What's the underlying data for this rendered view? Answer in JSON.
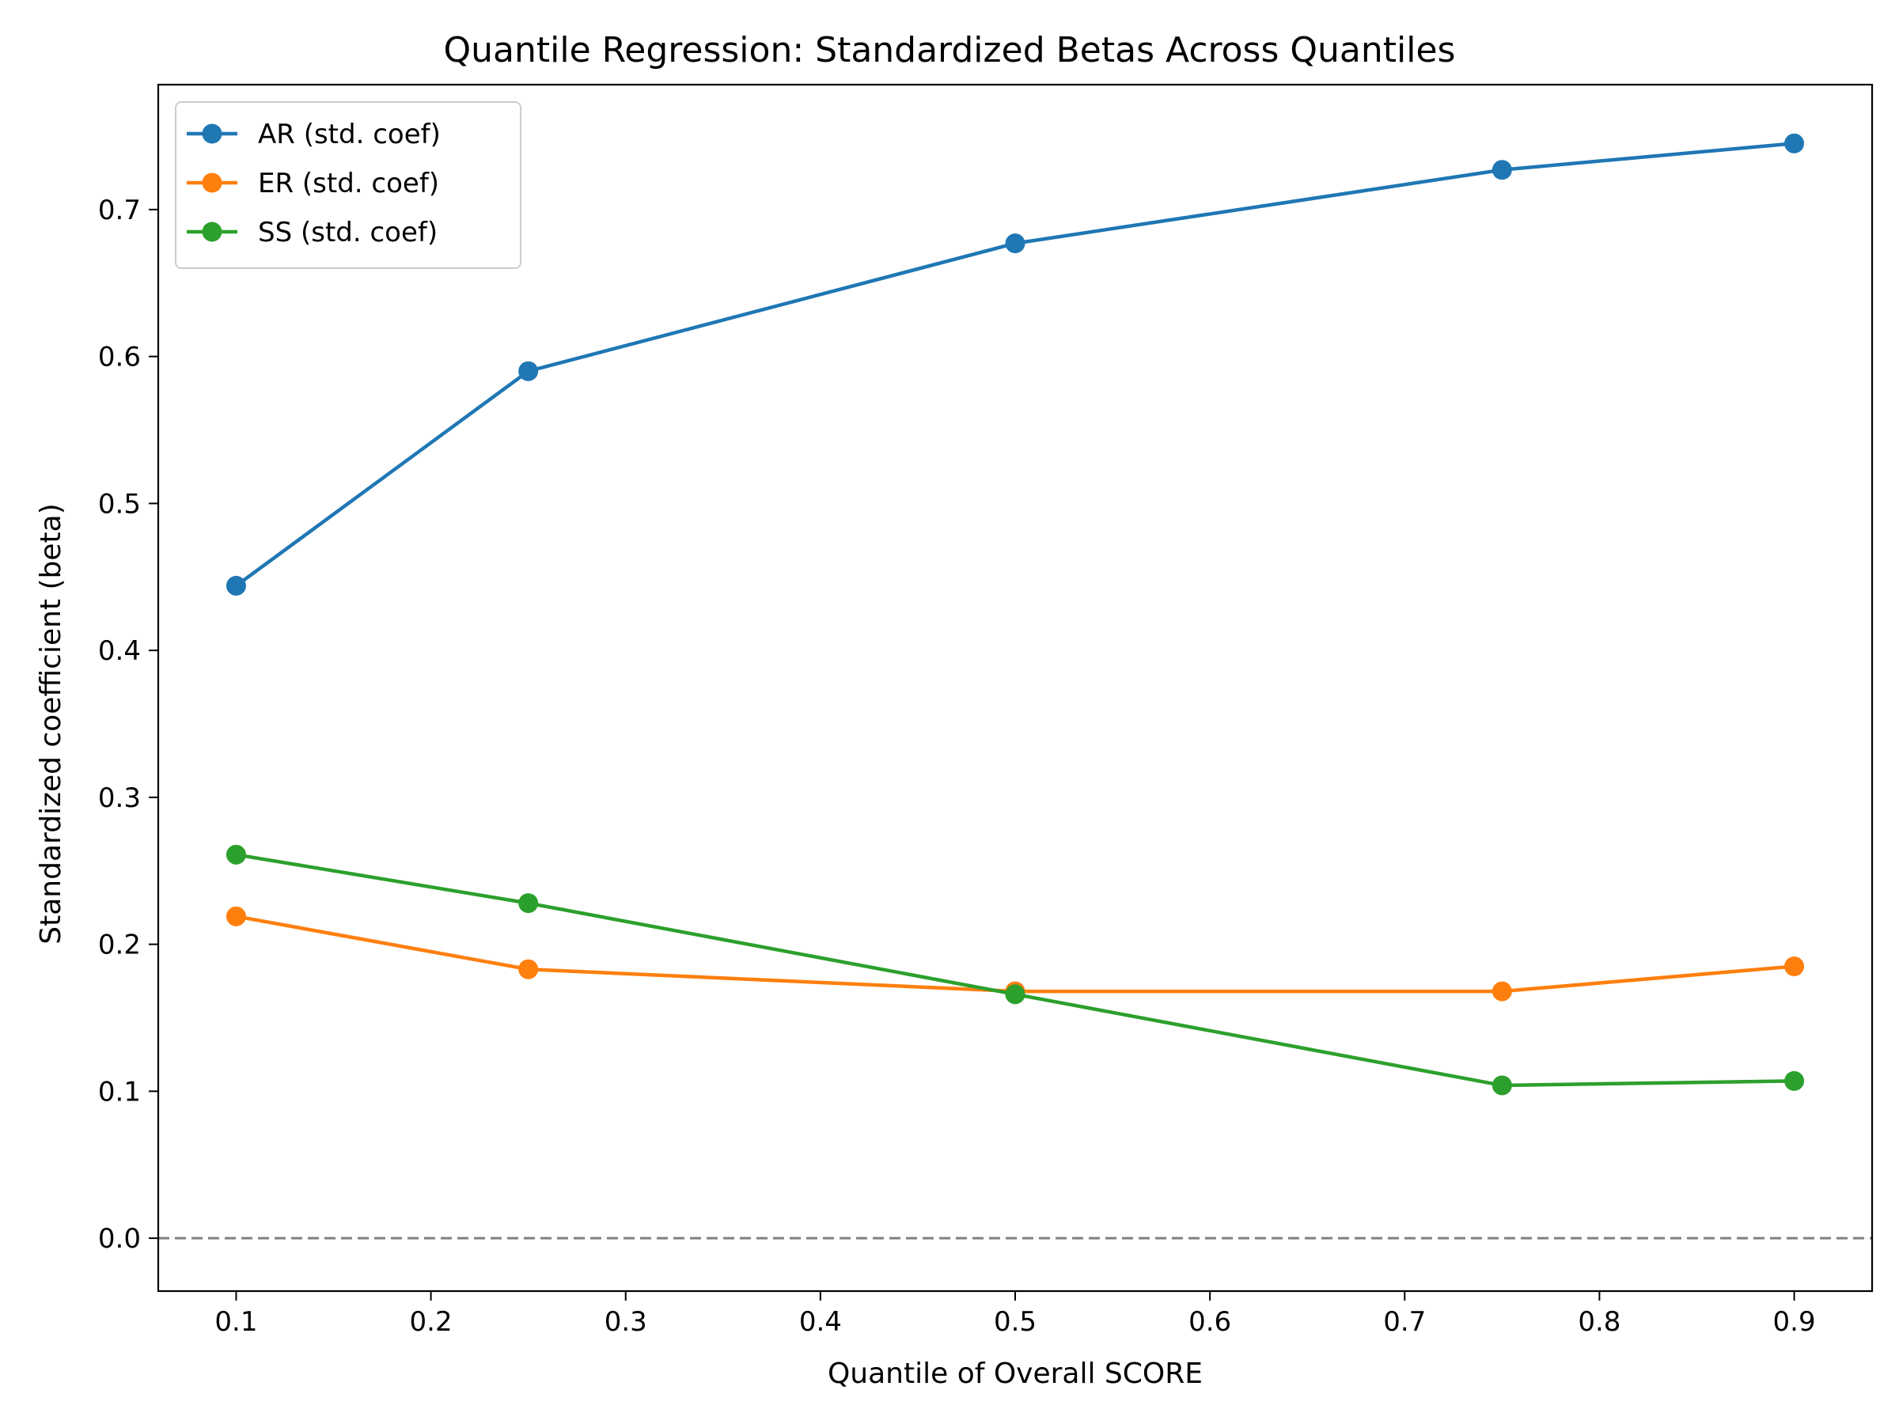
{
  "chart_data": {
    "type": "line",
    "title": "Quantile Regression: Standardized Betas Across Quantiles",
    "xlabel": "Quantile of Overall SCORE",
    "ylabel": "Standardized coefficient (beta)",
    "xlim": [
      0.06,
      0.94
    ],
    "ylim": [
      -0.036,
      0.785
    ],
    "xticks": [
      0.1,
      0.2,
      0.3,
      0.4,
      0.5,
      0.6,
      0.7,
      0.8,
      0.9
    ],
    "xtick_labels": [
      "0.1",
      "0.2",
      "0.3",
      "0.4",
      "0.5",
      "0.6",
      "0.7",
      "0.8",
      "0.9"
    ],
    "yticks": [
      0.0,
      0.1,
      0.2,
      0.3,
      0.4,
      0.5,
      0.6,
      0.7
    ],
    "ytick_labels": [
      "0.0",
      "0.1",
      "0.2",
      "0.3",
      "0.4",
      "0.5",
      "0.6",
      "0.7"
    ],
    "x": [
      0.1,
      0.25,
      0.5,
      0.75,
      0.9
    ],
    "series": [
      {
        "name": "AR (std. coef)",
        "color": "#1f77b4",
        "values": [
          0.444,
          0.59,
          0.677,
          0.727,
          0.745
        ]
      },
      {
        "name": "ER (std. coef)",
        "color": "#ff7f0e",
        "values": [
          0.219,
          0.183,
          0.168,
          0.168,
          0.185
        ]
      },
      {
        "name": "SS (std. coef)",
        "color": "#2ca02c",
        "values": [
          0.261,
          0.228,
          0.166,
          0.104,
          0.107
        ]
      }
    ],
    "reference_line": {
      "y": 0.0,
      "style": "dashed",
      "color": "#808080"
    },
    "legend_position": "top-left",
    "grid": false
  }
}
